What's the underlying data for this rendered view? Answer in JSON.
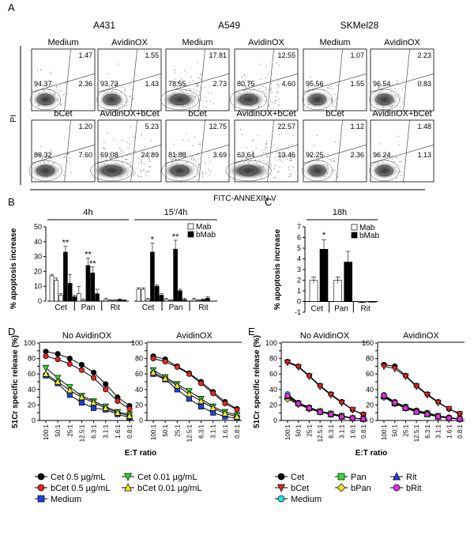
{
  "panel_letters": {
    "a": "A",
    "b": "B",
    "c": "C",
    "d": "D",
    "e": "E"
  },
  "flow": {
    "cell_lines": [
      "A431",
      "A549",
      "SKMel28"
    ],
    "y_axis_label": "PI",
    "x_axis_label": "FITC-ANNEXIN V",
    "rows": [
      [
        {
          "title": "Medium",
          "ur": "1.47",
          "ll": "94.37",
          "lr": "2.36"
        },
        {
          "title": "AvidinOX",
          "ur": "1.55",
          "ll": "93.73",
          "lr": "1.43"
        },
        {
          "title": "Medium",
          "ur": "17.81",
          "ll": "78.55",
          "lr": "2.73"
        },
        {
          "title": "AvidinOX",
          "ur": "12.55",
          "ll": "80.75",
          "lr": "4.60"
        },
        {
          "title": "Medium",
          "ur": "1.07",
          "ll": "95.56",
          "lr": "1.55"
        },
        {
          "title": "AvidinOX",
          "ur": "2.23",
          "ll": "96.54",
          "lr": "0.83"
        }
      ],
      [
        {
          "title": "bCet",
          "ur": "1.20",
          "ll": "89.32",
          "lr": "7.60"
        },
        {
          "title": "AvidinOX+bCet",
          "ur": "5.23",
          "ll": "69.08",
          "lr": "24.89"
        },
        {
          "title": "bCet",
          "ur": "12.75",
          "ll": "81.88",
          "lr": "3.69"
        },
        {
          "title": "AvidinOX+bCet",
          "ur": "22.57",
          "ll": "63.64",
          "lr": "13.46"
        },
        {
          "title": "bCet",
          "ur": "1.12",
          "ll": "92.25",
          "lr": "2.36"
        },
        {
          "title": "AvidinOX+bCet",
          "ur": "1.48",
          "ll": "96.24",
          "lr": "1.13"
        }
      ]
    ]
  },
  "chart_data": [
    {
      "type": "bar",
      "panel": "B",
      "ylabel": "% apoptosis increase",
      "ylim": [
        0,
        50
      ],
      "yticks": [
        0,
        10,
        20,
        30,
        40,
        50
      ],
      "legend": [
        "Mab",
        "bMab"
      ],
      "groups": [
        {
          "title": "4h",
          "categories": [
            "Cet",
            "Pan",
            "Rit"
          ],
          "bars": [
            {
              "group": "Cet",
              "type": "Mab",
              "value": 17,
              "err": 1
            },
            {
              "group": "Cet",
              "type": "Mab",
              "value": 14,
              "err": 1.5
            },
            {
              "group": "Cet",
              "type": "Mab",
              "value": 4,
              "err": 1
            },
            {
              "group": "Cet",
              "type": "bMab",
              "value": 33,
              "err": 4,
              "mark": "**"
            },
            {
              "group": "Cet",
              "type": "bMab",
              "value": 12,
              "err": 6
            },
            {
              "group": "Cet",
              "type": "bMab",
              "value": 3,
              "err": 1
            },
            {
              "group": "Pan",
              "type": "Mab",
              "value": 5,
              "err": 5
            },
            {
              "group": "Pan",
              "type": "Mab",
              "value": 0.5,
              "err": 1
            },
            {
              "group": "Pan",
              "type": "bMab",
              "value": 24,
              "err": 5,
              "mark": "**"
            },
            {
              "group": "Pan",
              "type": "bMab",
              "value": 19,
              "err": 4,
              "mark": "**"
            },
            {
              "group": "Pan",
              "type": "bMab",
              "value": 5,
              "err": 3
            },
            {
              "group": "Rit",
              "type": "Mab",
              "value": 1,
              "err": 1
            },
            {
              "group": "Rit",
              "type": "Mab",
              "value": 0.5,
              "err": 0.5
            },
            {
              "group": "Rit",
              "type": "Mab",
              "value": 0.5,
              "err": 0.5
            },
            {
              "group": "Rit",
              "type": "bMab",
              "value": 1,
              "err": 0.5
            },
            {
              "group": "Rit",
              "type": "bMab",
              "value": 0.5,
              "err": 0.5
            }
          ]
        },
        {
          "title": "15'/4h",
          "categories": [
            "Cet",
            "Pan",
            "Rit"
          ],
          "bars": [
            {
              "group": "Cet",
              "type": "Mab",
              "value": 8,
              "err": 1
            },
            {
              "group": "Cet",
              "type": "Mab",
              "value": 8,
              "err": 1
            },
            {
              "group": "Cet",
              "type": "Mab",
              "value": 1,
              "err": 1
            },
            {
              "group": "Cet",
              "type": "bMab",
              "value": 33,
              "err": 6,
              "mark": "*"
            },
            {
              "group": "Cet",
              "type": "bMab",
              "value": 10,
              "err": 1
            },
            {
              "group": "Cet",
              "type": "bMab",
              "value": 4,
              "err": 1
            },
            {
              "group": "Pan",
              "type": "Mab",
              "value": 1,
              "err": 1
            },
            {
              "group": "Pan",
              "type": "Mab",
              "value": 0.5,
              "err": 0.5
            },
            {
              "group": "Pan",
              "type": "bMab",
              "value": 35,
              "err": 6,
              "mark": "**"
            },
            {
              "group": "Pan",
              "type": "bMab",
              "value": 7,
              "err": 1
            },
            {
              "group": "Pan",
              "type": "bMab",
              "value": 1,
              "err": 1
            },
            {
              "group": "Rit",
              "type": "Mab",
              "value": 1,
              "err": 1
            },
            {
              "group": "Rit",
              "type": "Mab",
              "value": 0.5,
              "err": 0.5
            },
            {
              "group": "Rit",
              "type": "bMab",
              "value": 1,
              "err": 0.5
            },
            {
              "group": "Rit",
              "type": "bMab",
              "value": 2,
              "err": 1
            }
          ]
        }
      ]
    },
    {
      "type": "bar",
      "panel": "C",
      "title": "18h",
      "ylabel": "% apoptosis increase",
      "ylim": [
        -1,
        7
      ],
      "yticks": [
        -1,
        0,
        1,
        2,
        3,
        4,
        5,
        6,
        7
      ],
      "legend": [
        "Mab",
        "bMab"
      ],
      "categories": [
        "Cet",
        "Pan",
        "Rit"
      ],
      "bars": [
        {
          "group": "Cet",
          "type": "Mab",
          "value": 2.0,
          "err": 0.3
        },
        {
          "group": "Cet",
          "type": "bMab",
          "value": 4.9,
          "err": 0.9,
          "mark": "*"
        },
        {
          "group": "Pan",
          "type": "Mab",
          "value": 2.0,
          "err": 0.3
        },
        {
          "group": "Pan",
          "type": "bMab",
          "value": 3.7,
          "err": 1.0
        },
        {
          "group": "Rit",
          "type": "Mab",
          "value": -0.1,
          "err": 0.05
        },
        {
          "group": "Rit",
          "type": "bMab",
          "value": -0.05,
          "err": 0.05
        }
      ]
    },
    {
      "type": "line",
      "panel": "D",
      "ylabel": "51Cr specific release (%)",
      "xlabel": "E:T ratio",
      "x": [
        "100:1",
        "50:1",
        "25:1",
        "12.5:1",
        "6.3:1",
        "3.1:1",
        "1.6:1",
        "0.8:1"
      ],
      "ylim": [
        0,
        100
      ],
      "yticks": [
        0,
        10,
        20,
        30,
        40,
        50,
        60,
        70,
        80,
        90,
        100
      ],
      "panels": [
        {
          "title": "No AvidinOX",
          "series": [
            {
              "name": "Cet 0.5 µg/mL",
              "color": "#000000",
              "marker": "circle",
              "values": [
                89,
                86,
                80,
                72,
                62,
                47,
                30,
                19
              ]
            },
            {
              "name": "bCet 0.5 µg/mL",
              "color": "#e8231e",
              "marker": "circle",
              "values": [
                83,
                79,
                73,
                65,
                55,
                40,
                25,
                15
              ]
            },
            {
              "name": "Medium",
              "color": "#1f3fe0",
              "marker": "square",
              "values": [
                58,
                48,
                33,
                23,
                16,
                14,
                8,
                4
              ]
            },
            {
              "name": "Cet 0.01 µg/mL",
              "color": "#2ee02e",
              "marker": "triangle-down",
              "values": [
                68,
                55,
                43,
                32,
                25,
                18,
                11,
                8
              ]
            },
            {
              "name": "bCet 0.01 µg/mL",
              "color": "#f2ef1a",
              "marker": "triangle-up",
              "values": [
                60,
                50,
                39,
                30,
                23,
                16,
                10,
                6
              ]
            }
          ]
        },
        {
          "title": "AvidinOX",
          "series": [
            {
              "name": "Cet 0.5 µg/mL",
              "color": "#000000",
              "marker": "circle",
              "values": [
                83,
                79,
                70,
                61,
                50,
                37,
                24,
                15
              ]
            },
            {
              "name": "bCet 0.5 µg/mL",
              "color": "#e8231e",
              "marker": "circle",
              "values": [
                80,
                76,
                69,
                60,
                48,
                35,
                22,
                14
              ]
            },
            {
              "name": "Medium",
              "color": "#1f3fe0",
              "marker": "square",
              "values": [
                60,
                53,
                40,
                28,
                18,
                10,
                5,
                3
              ]
            },
            {
              "name": "Cet 0.01 µg/mL",
              "color": "#2ee02e",
              "marker": "triangle-down",
              "values": [
                65,
                56,
                47,
                38,
                28,
                18,
                11,
                7
              ]
            },
            {
              "name": "bCet 0.01 µg/mL",
              "color": "#f2ef1a",
              "marker": "triangle-up",
              "values": [
                62,
                54,
                45,
                34,
                25,
                16,
                9,
                5
              ]
            }
          ]
        }
      ]
    },
    {
      "type": "line",
      "panel": "E",
      "ylabel": "51Cr specific release (%)",
      "xlabel": "E:T ratio",
      "x": [
        "100:1",
        "50:1",
        "25:1",
        "12.5:1",
        "6.3:1",
        "3.1:1",
        "1.6:1",
        "0.8:1"
      ],
      "ylim": [
        0,
        100
      ],
      "yticks": [
        0,
        10,
        20,
        30,
        40,
        50,
        60,
        70,
        80,
        90,
        100
      ],
      "panels": [
        {
          "title": "No AvidinOX",
          "series": [
            {
              "name": "Cet",
              "color": "#000000",
              "marker": "circle",
              "values": [
                76,
                70,
                58,
                45,
                34,
                24,
                14,
                8
              ]
            },
            {
              "name": "bCet",
              "color": "#e8231e",
              "marker": "triangle-down",
              "values": [
                75,
                69,
                57,
                44,
                33,
                23,
                14,
                7
              ]
            },
            {
              "name": "Medium",
              "color": "#22e0e0",
              "marker": "circle",
              "values": [
                34,
                23,
                17,
                12,
                9,
                6,
                3,
                2
              ]
            },
            {
              "name": "Pan",
              "color": "#33dd33",
              "marker": "square",
              "values": [
                30,
                22,
                16,
                12,
                9,
                6,
                3,
                2
              ]
            },
            {
              "name": "bPan",
              "color": "#f2e01a",
              "marker": "diamond",
              "values": [
                28,
                21,
                15,
                11,
                8,
                5,
                3,
                2
              ]
            },
            {
              "name": "Rit",
              "color": "#1f3fe0",
              "marker": "triangle-up",
              "values": [
                31,
                22,
                16,
                11,
                8,
                5,
                3,
                2
              ]
            },
            {
              "name": "bRit",
              "color": "#e22ee2",
              "marker": "circle",
              "values": [
                32,
                22,
                16,
                11,
                8,
                5,
                3,
                2
              ]
            }
          ]
        },
        {
          "title": "AvidinOX",
          "series": [
            {
              "name": "Cet",
              "color": "#000000",
              "marker": "circle",
              "values": [
                72,
                70,
                58,
                45,
                34,
                24,
                15,
                9
              ]
            },
            {
              "name": "bCet",
              "color": "#e8231e",
              "marker": "triangle-down",
              "values": [
                70,
                67,
                57,
                44,
                33,
                23,
                15,
                8
              ]
            },
            {
              "name": "Medium",
              "color": "#22e0e0",
              "marker": "circle",
              "values": [
                33,
                24,
                18,
                13,
                10,
                6,
                4,
                2
              ]
            },
            {
              "name": "Pan",
              "color": "#33dd33",
              "marker": "square",
              "values": [
                31,
                23,
                17,
                12,
                9,
                6,
                3,
                2
              ]
            },
            {
              "name": "bPan",
              "color": "#f2e01a",
              "marker": "diamond",
              "values": [
                30,
                22,
                16,
                12,
                9,
                5,
                3,
                2
              ]
            },
            {
              "name": "Rit",
              "color": "#1f3fe0",
              "marker": "triangle-up",
              "values": [
                31,
                22,
                16,
                11,
                8,
                5,
                3,
                2
              ]
            },
            {
              "name": "bRit",
              "color": "#e22ee2",
              "marker": "circle",
              "values": [
                32,
                23,
                16,
                11,
                8,
                5,
                3,
                2
              ]
            }
          ]
        }
      ]
    }
  ]
}
